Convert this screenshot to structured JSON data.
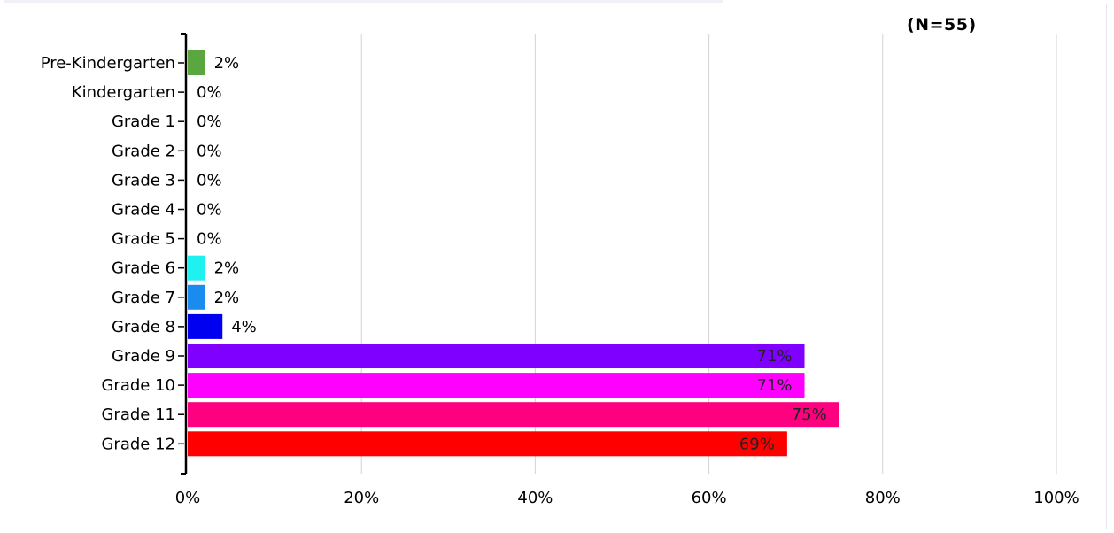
{
  "chart_data": {
    "type": "bar",
    "orientation": "horizontal",
    "annotation": "(N=55)",
    "categories": [
      "Pre-Kindergarten",
      "Kindergarten",
      "Grade 1",
      "Grade 2",
      "Grade 3",
      "Grade 4",
      "Grade 5",
      "Grade 6",
      "Grade 7",
      "Grade 8",
      "Grade 9",
      "Grade 10",
      "Grade 11",
      "Grade 12"
    ],
    "values": [
      2,
      0,
      0,
      0,
      0,
      0,
      0,
      2,
      2,
      4,
      71,
      71,
      75,
      69
    ],
    "value_labels": [
      "2%",
      "0%",
      "0%",
      "0%",
      "0%",
      "0%",
      "0%",
      "2%",
      "2%",
      "4%",
      "71%",
      "71%",
      "75%",
      "69%"
    ],
    "colors": [
      "#5aa63f",
      "#5aa63f",
      "#5aa63f",
      "#5aa63f",
      "#5aa63f",
      "#5aa63f",
      "#5aa63f",
      "#1ff0f0",
      "#1a8cf0",
      "#0000f0",
      "#8000ff",
      "#ff00ff",
      "#ff0080",
      "#ff0000"
    ],
    "xlim": [
      0,
      100
    ],
    "xticks": [
      0,
      20,
      40,
      60,
      80,
      100
    ],
    "xtick_labels": [
      "0%",
      "20%",
      "40%",
      "60%",
      "80%",
      "100%"
    ],
    "grid": "vertical",
    "title": "",
    "xlabel": "",
    "ylabel": ""
  }
}
